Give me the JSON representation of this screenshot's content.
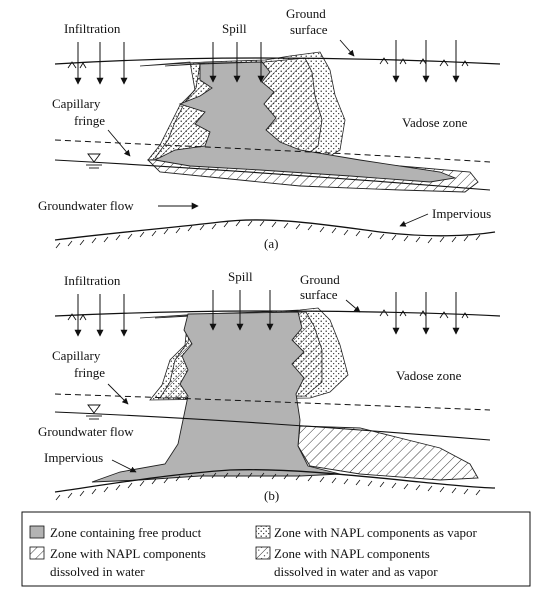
{
  "panel_a": {
    "infiltration": "Infiltration",
    "spill": "Spill",
    "ground": "Ground",
    "surface": "surface",
    "capillary": "Capillary",
    "fringe": "fringe",
    "vadose": "Vadose zone",
    "groundwater_flow": "Groundwater flow",
    "impervious": "Impervious",
    "caption": "(a)"
  },
  "panel_b": {
    "infiltration": "Infiltration",
    "spill": "Spill",
    "ground": "Ground",
    "surface": "surface",
    "capillary": "Capillary",
    "fringe": "fringe",
    "vadose": "Vadose zone",
    "groundwater_flow": "Groundwater flow",
    "impervious": "Impervious",
    "caption": "(b)"
  },
  "legend": {
    "free_product": "Zone containing free product",
    "vapor": "Zone with NAPL components as vapor",
    "dissolved_1": "Zone with NAPL components",
    "dissolved_2": "dissolved in water",
    "both_1": "Zone with NAPL components",
    "both_2": "dissolved in water and as vapor"
  },
  "colors": {
    "free_product": "#b3b3b3",
    "ink": "#111111"
  }
}
